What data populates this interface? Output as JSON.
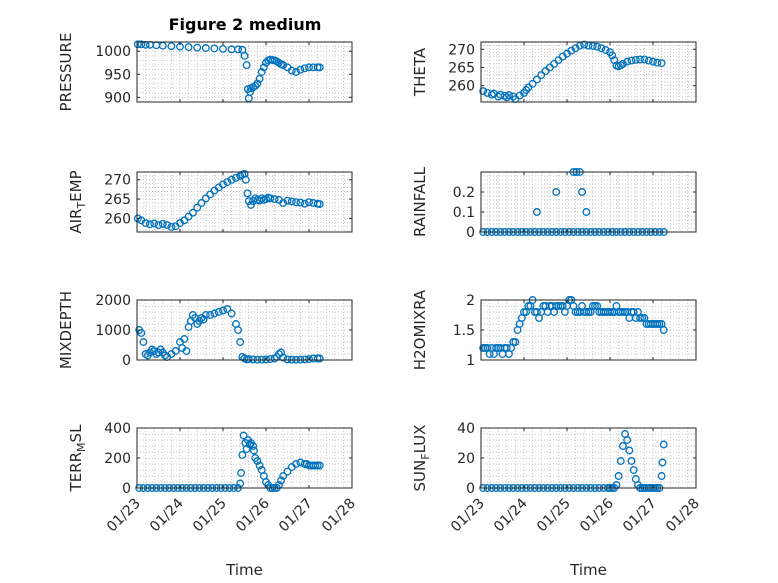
{
  "figure": {
    "title": "Figure 2 medium",
    "background": "#ffffff",
    "marker_color": "#0072BD",
    "axis_color": "#262626",
    "grid_color": "#b0b0b0"
  },
  "chart_data": [
    {
      "id": "pressure",
      "type": "scatter",
      "title": "Figure 2 medium",
      "ylabel": "PRESSURE",
      "xlabel": "",
      "x_ticks_visible": false,
      "xlim": [
        0,
        5
      ],
      "ylim": [
        890,
        1020
      ],
      "yticks": [
        900,
        950,
        1000
      ],
      "ytick_labels": [
        "900",
        "950",
        "1000"
      ],
      "x": [
        0.02,
        0.1,
        0.2,
        0.3,
        0.45,
        0.6,
        0.8,
        1.0,
        1.2,
        1.4,
        1.6,
        1.8,
        2.0,
        2.2,
        2.35,
        2.45,
        2.5,
        2.55,
        2.58,
        2.6,
        2.63,
        2.65,
        2.7,
        2.75,
        2.8,
        2.85,
        2.9,
        2.95,
        3.0,
        3.05,
        3.1,
        3.15,
        3.2,
        3.25,
        3.3,
        3.35,
        3.4,
        3.5,
        3.6,
        3.7,
        3.8,
        3.9,
        4.0,
        4.1,
        4.2,
        4.25
      ],
      "y": [
        1015,
        1015,
        1014,
        1014,
        1013,
        1012,
        1011,
        1010,
        1009,
        1008,
        1007,
        1006,
        1005,
        1004,
        1004,
        1003,
        990,
        970,
        918,
        898,
        912,
        920,
        922,
        925,
        930,
        940,
        955,
        965,
        975,
        980,
        982,
        981,
        980,
        978,
        975,
        972,
        970,
        965,
        958,
        955,
        960,
        963,
        965,
        965,
        965,
        965
      ]
    },
    {
      "id": "theta",
      "type": "scatter",
      "ylabel": "THETA",
      "x_ticks_visible": false,
      "xlim": [
        0,
        5
      ],
      "ylim": [
        255.5,
        272
      ],
      "yticks": [
        260,
        265,
        270
      ],
      "ytick_labels": [
        "260",
        "265",
        "270"
      ],
      "x": [
        0.05,
        0.15,
        0.25,
        0.3,
        0.4,
        0.45,
        0.55,
        0.6,
        0.65,
        0.75,
        0.8,
        0.9,
        1.0,
        1.05,
        1.1,
        1.2,
        1.3,
        1.4,
        1.5,
        1.6,
        1.7,
        1.8,
        1.9,
        2.0,
        2.1,
        2.2,
        2.3,
        2.4,
        2.5,
        2.6,
        2.7,
        2.8,
        2.9,
        3.0,
        3.05,
        3.1,
        3.15,
        3.2,
        3.25,
        3.3,
        3.4,
        3.5,
        3.6,
        3.7,
        3.8,
        3.9,
        4.0,
        4.1,
        4.2
      ],
      "y": [
        258.5,
        258,
        257.5,
        257.8,
        257,
        257.5,
        257.2,
        256.8,
        257.4,
        257,
        256.3,
        257.3,
        258,
        258.8,
        259.5,
        260.5,
        261.7,
        262.9,
        264,
        265,
        266,
        267,
        268,
        268.8,
        269.6,
        270.3,
        271,
        271.3,
        271,
        270.9,
        270.7,
        270.3,
        269.8,
        269.2,
        268.3,
        267,
        265.5,
        265.3,
        265.6,
        266,
        266.6,
        266.9,
        267.1,
        267.2,
        267.2,
        266.9,
        266.6,
        266.3,
        266.2
      ]
    },
    {
      "id": "airtemp",
      "type": "scatter",
      "ylabel": "AIR_TEMP",
      "ylabel_main": "AIR",
      "ylabel_sub": "T",
      "ylabel_rest": "EMP",
      "x_ticks_visible": false,
      "xlim": [
        0,
        5
      ],
      "ylim": [
        256.5,
        272
      ],
      "yticks": [
        260,
        265,
        270
      ],
      "ytick_labels": [
        "260",
        "265",
        "270"
      ],
      "x": [
        0.02,
        0.1,
        0.2,
        0.3,
        0.4,
        0.5,
        0.6,
        0.7,
        0.8,
        0.9,
        1.0,
        1.1,
        1.2,
        1.3,
        1.4,
        1.5,
        1.6,
        1.7,
        1.8,
        1.9,
        2.0,
        2.1,
        2.2,
        2.3,
        2.4,
        2.45,
        2.5,
        2.53,
        2.57,
        2.6,
        2.65,
        2.7,
        2.75,
        2.8,
        2.85,
        2.9,
        2.95,
        3.0,
        3.05,
        3.1,
        3.2,
        3.3,
        3.4,
        3.5,
        3.6,
        3.7,
        3.8,
        3.9,
        4.0,
        4.1,
        4.2,
        4.25
      ],
      "y": [
        260,
        259.5,
        258.8,
        258.5,
        258.7,
        258.3,
        258.6,
        258.3,
        257.8,
        258,
        258.8,
        259.5,
        260.5,
        261.5,
        262.8,
        264,
        265.2,
        266.2,
        267.2,
        268,
        268.8,
        269.4,
        270,
        270.5,
        271,
        271.3,
        271.5,
        270,
        266.5,
        264.5,
        263.5,
        264.5,
        265.2,
        264.8,
        264.6,
        265.2,
        264.8,
        265,
        265.4,
        265.2,
        265,
        264.8,
        264,
        264.6,
        264.4,
        264.2,
        264.1,
        263.8,
        264.2,
        264,
        263.8,
        263.7
      ]
    },
    {
      "id": "rainfall",
      "type": "scatter",
      "ylabel": "RAINFALL",
      "x_ticks_visible": false,
      "xlim": [
        0,
        5
      ],
      "ylim": [
        0,
        0.3
      ],
      "yticks": [
        0,
        0.1,
        0.2
      ],
      "ytick_labels": [
        "0",
        "0.1",
        "0.2"
      ],
      "x": [
        0.05,
        0.15,
        0.25,
        0.35,
        0.45,
        0.55,
        0.65,
        0.75,
        0.85,
        0.95,
        1.05,
        1.15,
        1.25,
        1.35,
        1.45,
        1.55,
        1.65,
        1.75,
        1.85,
        1.95,
        2.05,
        2.15,
        2.25,
        2.35,
        2.45,
        2.55,
        2.65,
        2.75,
        2.85,
        2.95,
        3.05,
        3.15,
        3.25,
        3.35,
        3.45,
        3.55,
        3.65,
        3.75,
        3.85,
        3.95,
        4.05,
        4.15,
        4.25,
        1.3,
        1.75,
        2.15,
        2.22,
        2.3,
        2.35,
        2.45
      ],
      "y": [
        0,
        0,
        0,
        0,
        0,
        0,
        0,
        0,
        0,
        0,
        0,
        0,
        0,
        0,
        0,
        0,
        0,
        0,
        0,
        0,
        0,
        0,
        0,
        0,
        0,
        0,
        0,
        0,
        0,
        0,
        0,
        0,
        0,
        0,
        0,
        0,
        0,
        0,
        0,
        0,
        0,
        0,
        0,
        0.1,
        0.2,
        0.3,
        0.3,
        0.3,
        0.2,
        0.1
      ]
    },
    {
      "id": "mixdepth",
      "type": "scatter",
      "ylabel": "MIXDEPTH",
      "x_ticks_visible": false,
      "xlim": [
        0,
        5
      ],
      "ylim": [
        0,
        2000
      ],
      "yticks": [
        0,
        1000,
        2000
      ],
      "ytick_labels": [
        "0",
        "1000",
        "2000"
      ],
      "x": [
        0.05,
        0.1,
        0.15,
        0.2,
        0.25,
        0.3,
        0.35,
        0.4,
        0.45,
        0.5,
        0.55,
        0.6,
        0.65,
        0.7,
        0.8,
        0.9,
        1.0,
        1.05,
        1.1,
        1.15,
        1.2,
        1.25,
        1.3,
        1.35,
        1.4,
        1.45,
        1.5,
        1.55,
        1.6,
        1.7,
        1.8,
        1.9,
        2.0,
        2.1,
        2.2,
        2.3,
        2.35,
        2.4,
        2.45,
        2.5,
        2.55,
        2.6,
        2.7,
        2.8,
        2.9,
        3.0,
        3.1,
        3.2,
        3.25,
        3.3,
        3.35,
        3.4,
        3.5,
        3.6,
        3.7,
        3.8,
        3.9,
        4.0,
        4.1,
        4.2,
        4.25
      ],
      "y": [
        1000,
        900,
        600,
        200,
        150,
        250,
        350,
        300,
        200,
        250,
        350,
        250,
        150,
        100,
        200,
        300,
        600,
        400,
        700,
        300,
        1100,
        1300,
        1500,
        1400,
        1200,
        1300,
        1400,
        1350,
        1500,
        1500,
        1550,
        1600,
        1650,
        1700,
        1550,
        1200,
        1000,
        600,
        100,
        50,
        20,
        30,
        20,
        10,
        10,
        20,
        30,
        50,
        100,
        200,
        250,
        80,
        20,
        10,
        5,
        10,
        20,
        30,
        50,
        50,
        50
      ]
    },
    {
      "id": "h2omixra",
      "type": "scatter",
      "ylabel": "H2OMIXRA",
      "x_ticks_visible": false,
      "xlim": [
        0,
        5
      ],
      "ylim": [
        1,
        2
      ],
      "yticks": [
        1,
        1.5,
        2
      ],
      "ytick_labels": [
        "1",
        "1.5",
        "2"
      ],
      "x": [
        0.05,
        0.1,
        0.15,
        0.2,
        0.25,
        0.3,
        0.35,
        0.4,
        0.45,
        0.5,
        0.55,
        0.6,
        0.65,
        0.7,
        0.75,
        0.8,
        0.85,
        0.9,
        0.95,
        1.0,
        1.05,
        1.1,
        1.15,
        1.2,
        1.25,
        1.3,
        1.35,
        1.4,
        1.45,
        1.5,
        1.55,
        1.6,
        1.65,
        1.7,
        1.75,
        1.8,
        1.85,
        1.9,
        1.95,
        2.0,
        2.05,
        2.1,
        2.15,
        2.2,
        2.25,
        2.3,
        2.35,
        2.4,
        2.45,
        2.5,
        2.55,
        2.6,
        2.65,
        2.7,
        2.75,
        2.8,
        2.85,
        2.9,
        2.95,
        3.0,
        3.05,
        3.1,
        3.15,
        3.2,
        3.25,
        3.3,
        3.35,
        3.4,
        3.45,
        3.5,
        3.55,
        3.6,
        3.65,
        3.7,
        3.75,
        3.8,
        3.85,
        3.9,
        3.95,
        4.0,
        4.05,
        4.1,
        4.15,
        4.2,
        4.25
      ],
      "y": [
        1.2,
        1.2,
        1.2,
        1.1,
        1.2,
        1.1,
        1.2,
        1.2,
        1.2,
        1.1,
        1.2,
        1.2,
        1.1,
        1.2,
        1.3,
        1.3,
        1.5,
        1.6,
        1.7,
        1.8,
        1.8,
        1.9,
        1.9,
        2.0,
        1.8,
        1.8,
        1.7,
        1.8,
        1.9,
        1.9,
        1.8,
        1.9,
        1.9,
        1.8,
        1.9,
        1.9,
        1.9,
        1.9,
        1.8,
        1.9,
        2.0,
        2.0,
        1.9,
        1.8,
        1.8,
        1.8,
        1.9,
        1.8,
        1.8,
        1.8,
        1.8,
        1.9,
        1.9,
        1.9,
        1.8,
        1.8,
        1.8,
        1.8,
        1.8,
        1.8,
        1.8,
        1.8,
        1.9,
        1.8,
        1.8,
        1.8,
        1.8,
        1.8,
        1.7,
        1.8,
        1.8,
        1.7,
        1.8,
        1.7,
        1.7,
        1.7,
        1.6,
        1.6,
        1.6,
        1.6,
        1.6,
        1.6,
        1.6,
        1.6,
        1.5
      ]
    },
    {
      "id": "terrmsl",
      "type": "scatter",
      "ylabel": "TERR_MSL",
      "ylabel_main": "TERR",
      "ylabel_sub": "M",
      "ylabel_rest": "SL",
      "xlabel": "Time",
      "x_ticks_visible": true,
      "xlim": [
        0,
        5
      ],
      "xticks": [
        0,
        1,
        2,
        3,
        4,
        5
      ],
      "xtick_labels": [
        "01/23",
        "01/24",
        "01/25",
        "01/26",
        "01/27",
        "01/28"
      ],
      "ylim": [
        0,
        400
      ],
      "yticks": [
        0,
        200,
        400
      ],
      "ytick_labels": [
        "0",
        "200",
        "400"
      ],
      "x": [
        0.05,
        0.15,
        0.25,
        0.35,
        0.45,
        0.55,
        0.65,
        0.75,
        0.85,
        0.95,
        1.05,
        1.15,
        1.25,
        1.35,
        1.45,
        1.55,
        1.65,
        1.75,
        1.85,
        1.95,
        2.05,
        2.15,
        2.25,
        2.35,
        2.4,
        2.42,
        2.45,
        2.48,
        2.52,
        2.55,
        2.58,
        2.62,
        2.65,
        2.7,
        2.72,
        2.75,
        2.8,
        2.85,
        2.9,
        2.95,
        3.0,
        3.05,
        3.1,
        3.15,
        3.2,
        3.25,
        3.3,
        3.35,
        3.4,
        3.5,
        3.6,
        3.7,
        3.8,
        3.9,
        3.95,
        4.0,
        4.05,
        4.1,
        4.15,
        4.2,
        4.25
      ],
      "y": [
        0,
        0,
        0,
        0,
        0,
        0,
        0,
        0,
        0,
        0,
        0,
        0,
        0,
        0,
        0,
        0,
        0,
        0,
        0,
        0,
        0,
        0,
        0,
        0,
        30,
        100,
        220,
        350,
        300,
        260,
        320,
        290,
        300,
        280,
        250,
        200,
        180,
        150,
        120,
        80,
        40,
        20,
        0,
        0,
        0,
        0,
        20,
        50,
        80,
        110,
        140,
        160,
        170,
        160,
        160,
        150,
        150,
        150,
        150,
        150,
        150
      ]
    },
    {
      "id": "sunflux",
      "type": "scatter",
      "ylabel": "SUN_FLUX",
      "ylabel_main": "SUN",
      "ylabel_sub": "F",
      "ylabel_rest": "LUX",
      "xlabel": "Time",
      "x_ticks_visible": true,
      "xlim": [
        0,
        5
      ],
      "xticks": [
        0,
        1,
        2,
        3,
        4,
        5
      ],
      "xtick_labels": [
        "01/23",
        "01/24",
        "01/25",
        "01/26",
        "01/27",
        "01/28"
      ],
      "ylim": [
        0,
        40
      ],
      "yticks": [
        0,
        20,
        40
      ],
      "ytick_labels": [
        "0",
        "20",
        "40"
      ],
      "x": [
        0.05,
        0.15,
        0.25,
        0.35,
        0.45,
        0.55,
        0.65,
        0.75,
        0.85,
        0.95,
        1.05,
        1.15,
        1.25,
        1.35,
        1.45,
        1.55,
        1.65,
        1.75,
        1.85,
        1.95,
        2.05,
        2.15,
        2.25,
        2.35,
        2.45,
        2.55,
        2.65,
        2.75,
        2.85,
        2.95,
        3.0,
        3.05,
        3.1,
        3.15,
        3.2,
        3.25,
        3.3,
        3.35,
        3.4,
        3.45,
        3.5,
        3.55,
        3.6,
        3.65,
        3.7,
        3.75,
        3.8,
        3.85,
        3.9,
        3.95,
        4.0,
        4.05,
        4.1,
        4.15,
        4.2,
        4.22,
        4.25
      ],
      "y": [
        0,
        0,
        0,
        0,
        0,
        0,
        0,
        0,
        0,
        0,
        0,
        0,
        0,
        0,
        0,
        0,
        0,
        0,
        0,
        0,
        0,
        0,
        0,
        0,
        0,
        0,
        0,
        0,
        0,
        0,
        0,
        0,
        0,
        2,
        8,
        18,
        28,
        36,
        32,
        25,
        18,
        12,
        6,
        2,
        0,
        0,
        0,
        0,
        0,
        0,
        0,
        0,
        0,
        0,
        8,
        17,
        29
      ]
    }
  ]
}
